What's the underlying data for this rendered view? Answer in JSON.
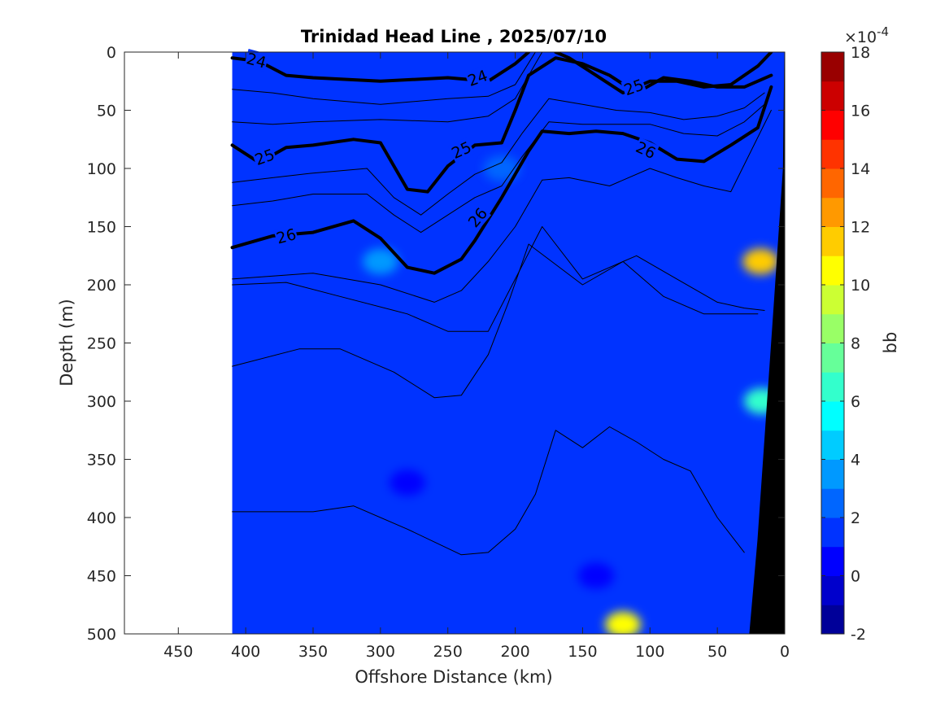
{
  "chart_data": {
    "type": "heatmap",
    "title": "Trinidad Head Line , 2025/07/10",
    "xlabel": "Offshore Distance (km)",
    "ylabel": "Depth (m)",
    "xlim": [
      490,
      0
    ],
    "ylim": [
      0,
      500
    ],
    "x_reversed": true,
    "y_reversed": true,
    "xticks": [
      450,
      400,
      350,
      300,
      250,
      200,
      150,
      100,
      50,
      0
    ],
    "yticks": [
      0,
      50,
      100,
      150,
      200,
      250,
      300,
      350,
      400,
      450,
      500
    ],
    "data_extent_x": [
      410,
      0
    ],
    "colormap": "jet",
    "colorbar": {
      "label": "bb",
      "exponent_label": "×10",
      "exponent_power": "-4",
      "range": [
        -2,
        18
      ],
      "ticks": [
        -2,
        0,
        2,
        4,
        6,
        8,
        10,
        12,
        14,
        16,
        18
      ],
      "levels": 20
    },
    "background_value": 1.5,
    "features": [
      {
        "x": 120,
        "y": 492,
        "value": 10
      },
      {
        "x": 18,
        "y": 180,
        "value": 11
      },
      {
        "x": 17,
        "y": 300,
        "value": 6
      },
      {
        "x": 300,
        "y": 180,
        "value": 3
      },
      {
        "x": 210,
        "y": 100,
        "value": 2.5
      },
      {
        "x": 280,
        "y": 370,
        "value": 0.8
      },
      {
        "x": 140,
        "y": 450,
        "value": 0.8
      }
    ],
    "density_contours": [
      {
        "level": 24,
        "labeled": true,
        "x": [
          410,
          390,
          370,
          350,
          300,
          250,
          220,
          200,
          190
        ],
        "y": [
          5,
          8,
          20,
          22,
          25,
          22,
          25,
          10,
          0
        ]
      },
      {
        "level": 24,
        "labeled": true,
        "x": [
          170,
          160,
          140,
          120,
          100,
          80,
          60,
          40,
          20,
          10
        ],
        "y": [
          0,
          5,
          20,
          35,
          25,
          25,
          30,
          28,
          12,
          0
        ]
      },
      {
        "level": 25,
        "labeled": true,
        "x": [
          410,
          390,
          370,
          350,
          320,
          300,
          280,
          265,
          250,
          230,
          210,
          200,
          190,
          170,
          150,
          130,
          110,
          90,
          70,
          50,
          30,
          10
        ],
        "y": [
          80,
          95,
          82,
          80,
          75,
          78,
          118,
          120,
          98,
          80,
          78,
          50,
          20,
          5,
          10,
          20,
          35,
          22,
          25,
          30,
          30,
          20
        ]
      },
      {
        "level": 26,
        "labeled": true,
        "x": [
          410,
          380,
          350,
          320,
          300,
          280,
          260,
          240,
          230,
          210,
          190,
          180,
          160,
          140,
          120,
          100,
          80,
          60,
          40,
          20,
          10
        ],
        "y": [
          168,
          158,
          155,
          145,
          160,
          185,
          190,
          178,
          162,
          125,
          85,
          68,
          70,
          68,
          70,
          78,
          92,
          94,
          80,
          65,
          30
        ]
      },
      {
        "level": 26.2,
        "labeled": false,
        "x": [
          410,
          350,
          300,
          260,
          240,
          220,
          200,
          180,
          160,
          130,
          100,
          80,
          60,
          40,
          10
        ],
        "y": [
          195,
          190,
          200,
          215,
          205,
          180,
          150,
          110,
          108,
          115,
          100,
          108,
          115,
          120,
          50
        ]
      },
      {
        "level": 26.4,
        "labeled": false,
        "x": [
          410,
          370,
          330,
          280,
          250,
          220,
          200,
          180,
          150,
          110,
          80,
          50,
          30,
          15
        ],
        "y": [
          200,
          198,
          210,
          225,
          240,
          240,
          195,
          150,
          195,
          175,
          195,
          215,
          220,
          222
        ]
      },
      {
        "level": 26.5,
        "labeled": false,
        "x": [
          410,
          360,
          330,
          290,
          260,
          240,
          220,
          205,
          190,
          150,
          120,
          90,
          60,
          40,
          20
        ],
        "y": [
          270,
          255,
          255,
          275,
          297,
          295,
          260,
          215,
          165,
          200,
          180,
          210,
          225,
          225,
          225
        ]
      },
      {
        "level": 26.7,
        "labeled": false,
        "x": [
          410,
          350,
          320,
          280,
          240,
          220,
          200,
          185,
          170,
          150,
          130,
          110,
          90,
          70,
          50,
          30
        ],
        "y": [
          395,
          395,
          390,
          410,
          432,
          430,
          410,
          380,
          325,
          340,
          322,
          335,
          350,
          360,
          400,
          430
        ]
      },
      {
        "level": 24.3,
        "labeled": false,
        "x": [
          410,
          380,
          350,
          300,
          250,
          220,
          200,
          185
        ],
        "y": [
          32,
          35,
          40,
          45,
          40,
          38,
          28,
          0
        ]
      },
      {
        "level": 24.6,
        "labeled": false,
        "x": [
          410,
          380,
          350,
          300,
          250,
          220,
          200,
          180
        ],
        "y": [
          60,
          62,
          60,
          58,
          60,
          55,
          40,
          0
        ]
      },
      {
        "level": 25.3,
        "labeled": false,
        "x": [
          410,
          380,
          350,
          310,
          290,
          270,
          250,
          230,
          210,
          195,
          175,
          150,
          125,
          100,
          75,
          50,
          30,
          15
        ],
        "y": [
          112,
          108,
          104,
          100,
          125,
          140,
          122,
          105,
          95,
          70,
          40,
          45,
          50,
          52,
          58,
          55,
          48,
          35
        ]
      },
      {
        "level": 25.6,
        "labeled": false,
        "x": [
          410,
          380,
          350,
          310,
          290,
          270,
          250,
          230,
          210,
          195,
          175,
          150,
          125,
          100,
          75,
          50,
          30,
          15
        ],
        "y": [
          132,
          128,
          122,
          122,
          140,
          155,
          140,
          125,
          115,
          90,
          60,
          62,
          62,
          62,
          70,
          72,
          60,
          45
        ]
      }
    ],
    "contour_labels": [
      {
        "text": "24",
        "x": 392,
        "y": 7,
        "angle": 15
      },
      {
        "text": "24",
        "x": 228,
        "y": 22,
        "angle": -20
      },
      {
        "text": "25",
        "x": 112,
        "y": 30,
        "angle": -20
      },
      {
        "text": "25",
        "x": 386,
        "y": 90,
        "angle": -20
      },
      {
        "text": "25",
        "x": 240,
        "y": 84,
        "angle": -25
      },
      {
        "text": "26",
        "x": 370,
        "y": 158,
        "angle": -15
      },
      {
        "text": "26",
        "x": 228,
        "y": 142,
        "angle": -50
      },
      {
        "text": "26",
        "x": 103,
        "y": 84,
        "angle": 25
      }
    ],
    "bathymetry": {
      "x": [
        26,
        20,
        14,
        8,
        1,
        0,
        0
      ],
      "y": [
        500,
        420,
        320,
        220,
        100,
        0,
        500
      ]
    }
  }
}
